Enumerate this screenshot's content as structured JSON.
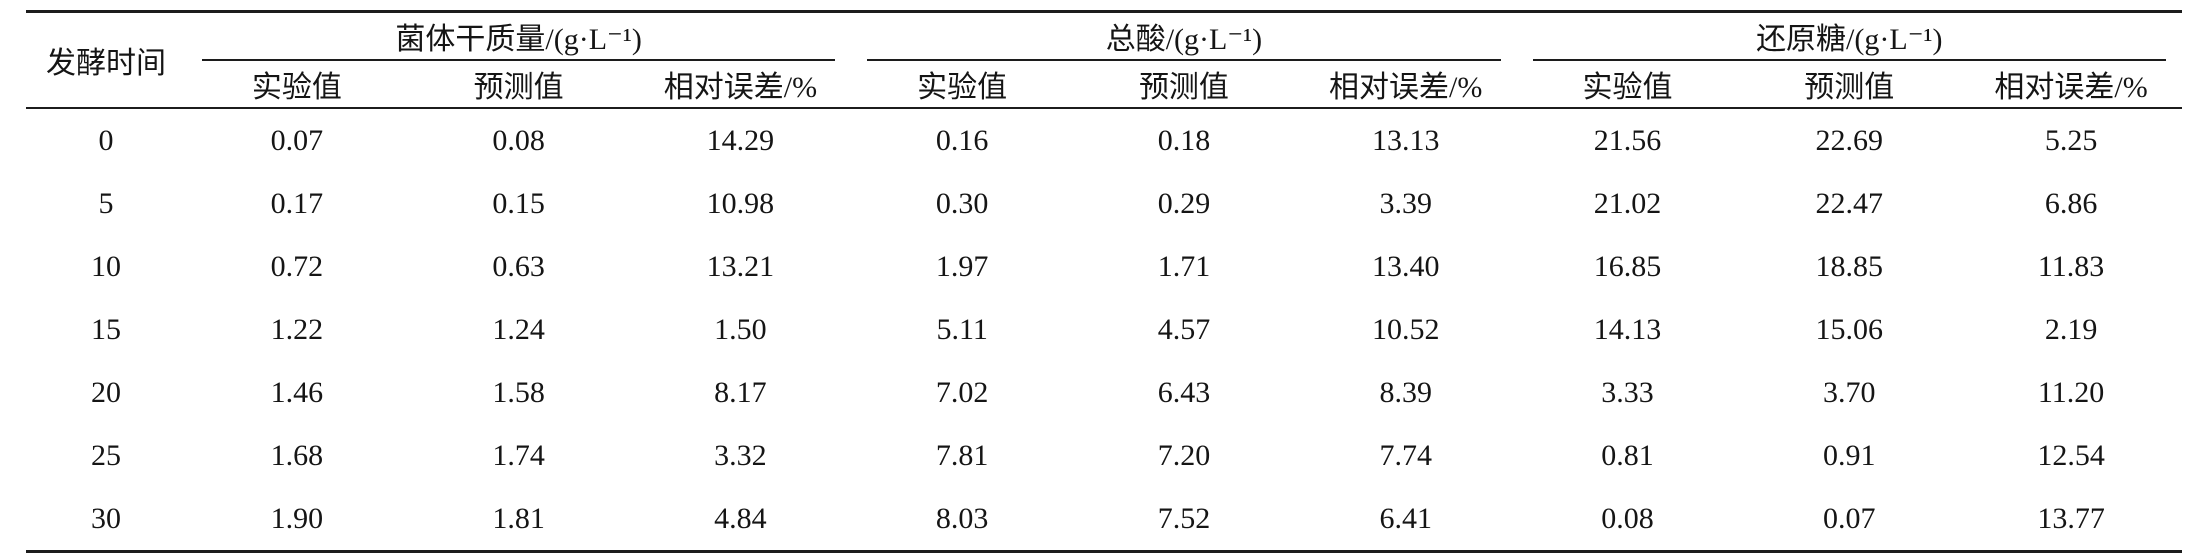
{
  "table": {
    "col0_header": "发酵时间",
    "groups": [
      {
        "label": "菌体干质量/(g·L⁻¹)"
      },
      {
        "label": "总酸/(g·L⁻¹)"
      },
      {
        "label": "还原糖/(g·L⁻¹)"
      }
    ],
    "sub_headers": [
      "实验值",
      "预测值",
      "相对误差/%"
    ],
    "rows": [
      {
        "time": "0",
        "values": [
          "0.07",
          "0.08",
          "14.29",
          "0.16",
          "0.18",
          "13.13",
          "21.56",
          "22.69",
          "5.25"
        ]
      },
      {
        "time": "5",
        "values": [
          "0.17",
          "0.15",
          "10.98",
          "0.30",
          "0.29",
          "3.39",
          "21.02",
          "22.47",
          "6.86"
        ]
      },
      {
        "time": "10",
        "values": [
          "0.72",
          "0.63",
          "13.21",
          "1.97",
          "1.71",
          "13.40",
          "16.85",
          "18.85",
          "11.83"
        ]
      },
      {
        "time": "15",
        "values": [
          "1.22",
          "1.24",
          "1.50",
          "5.11",
          "4.57",
          "10.52",
          "14.13",
          "15.06",
          "2.19"
        ]
      },
      {
        "time": "20",
        "values": [
          "1.46",
          "1.58",
          "8.17",
          "7.02",
          "6.43",
          "8.39",
          "3.33",
          "3.70",
          "11.20"
        ]
      },
      {
        "time": "25",
        "values": [
          "1.68",
          "1.74",
          "3.32",
          "7.81",
          "7.20",
          "7.74",
          "0.81",
          "0.91",
          "12.54"
        ]
      },
      {
        "time": "30",
        "values": [
          "1.90",
          "1.81",
          "4.84",
          "8.03",
          "7.52",
          "6.41",
          "0.08",
          "0.07",
          "13.77"
        ]
      }
    ]
  },
  "chart_data": {
    "type": "table",
    "column_groups": [
      "菌体干质量/(g·L⁻¹)",
      "总酸/(g·L⁻¹)",
      "还原糖/(g·L⁻¹)"
    ],
    "columns": [
      "发酵时间",
      "菌体干质量-实验值",
      "菌体干质量-预测值",
      "菌体干质量-相对误差/%",
      "总酸-实验值",
      "总酸-预测值",
      "总酸-相对误差/%",
      "还原糖-实验值",
      "还原糖-预测值",
      "还原糖-相对误差/%"
    ],
    "rows": [
      [
        0,
        0.07,
        0.08,
        14.29,
        0.16,
        0.18,
        13.13,
        21.56,
        22.69,
        5.25
      ],
      [
        5,
        0.17,
        0.15,
        10.98,
        0.3,
        0.29,
        3.39,
        21.02,
        22.47,
        6.86
      ],
      [
        10,
        0.72,
        0.63,
        13.21,
        1.97,
        1.71,
        13.4,
        16.85,
        18.85,
        11.83
      ],
      [
        15,
        1.22,
        1.24,
        1.5,
        5.11,
        4.57,
        10.52,
        14.13,
        15.06,
        2.19
      ],
      [
        20,
        1.46,
        1.58,
        8.17,
        7.02,
        6.43,
        8.39,
        3.33,
        3.7,
        11.2
      ],
      [
        25,
        1.68,
        1.74,
        3.32,
        7.81,
        7.2,
        7.74,
        0.81,
        0.91,
        12.54
      ],
      [
        30,
        1.9,
        1.81,
        4.84,
        8.03,
        7.52,
        6.41,
        0.08,
        0.07,
        13.77
      ]
    ]
  }
}
